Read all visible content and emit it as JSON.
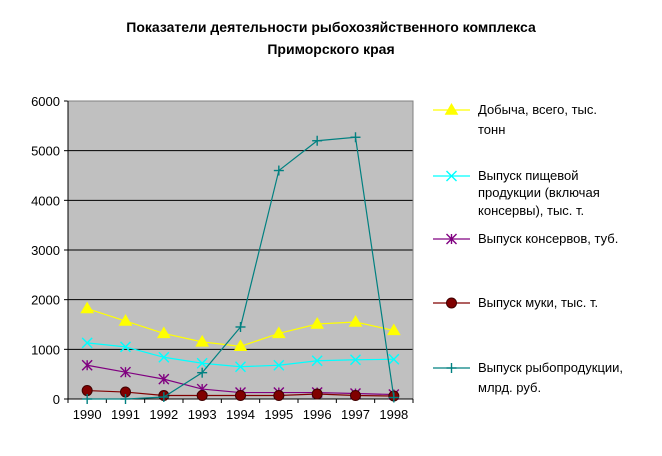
{
  "chart_data": {
    "type": "line",
    "title": [
      "Показатели деятельности рыбохозяйственного комплекса",
      "Приморского края"
    ],
    "xlabel": "",
    "ylabel": "",
    "categories": [
      "1990",
      "1991",
      "1992",
      "1993",
      "1994",
      "1995",
      "1996",
      "1997",
      "1998"
    ],
    "ylim": [
      0,
      6000
    ],
    "yticks": [
      0,
      1000,
      2000,
      3000,
      4000,
      5000,
      6000
    ],
    "grid": true,
    "legend_position": "right",
    "plot_background": "#c0c0c0",
    "series": [
      {
        "name": "Добыча, всего, тыс. тонн",
        "legend_lines": [
          "Добыча, всего, тыс.",
          "тонн"
        ],
        "color": "#ffff00",
        "line_color": "#ffff00",
        "marker": "triangle",
        "values": [
          1820,
          1570,
          1320,
          1150,
          1060,
          1320,
          1510,
          1550,
          1380
        ]
      },
      {
        "name": "Выпуск пищевой продукции (включая консервы), тыс. т.",
        "legend_lines": [
          "Выпуск пищевой",
          "продукции (включая",
          "консервы), тыс. т."
        ],
        "color": "#00ffff",
        "line_color": "#00ffff",
        "marker": "x",
        "values": [
          1130,
          1050,
          840,
          720,
          650,
          680,
          770,
          790,
          800
        ]
      },
      {
        "name": "Выпуск консервов, туб.",
        "legend_lines": [
          "Выпуск консервов, туб."
        ],
        "color": "#800080",
        "line_color": "#800080",
        "marker": "star",
        "values": [
          680,
          540,
          400,
          200,
          130,
          130,
          130,
          110,
          90
        ]
      },
      {
        "name": "Выпуск муки, тыс. т.",
        "legend_lines": [
          "Выпуск муки, тыс. т."
        ],
        "color": "#800000",
        "line_color": "#800000",
        "marker": "circle",
        "values": [
          170,
          140,
          70,
          70,
          70,
          70,
          100,
          70,
          60
        ]
      },
      {
        "name": "Выпуск рыбопродукции, млрд. руб.",
        "legend_lines": [
          "Выпуск рыбопродукции,",
          "млрд. руб."
        ],
        "color": "#008080",
        "line_color": "#008080",
        "marker": "plus",
        "values": [
          0,
          0,
          40,
          530,
          1450,
          4600,
          5200,
          5270,
          30
        ]
      }
    ]
  }
}
